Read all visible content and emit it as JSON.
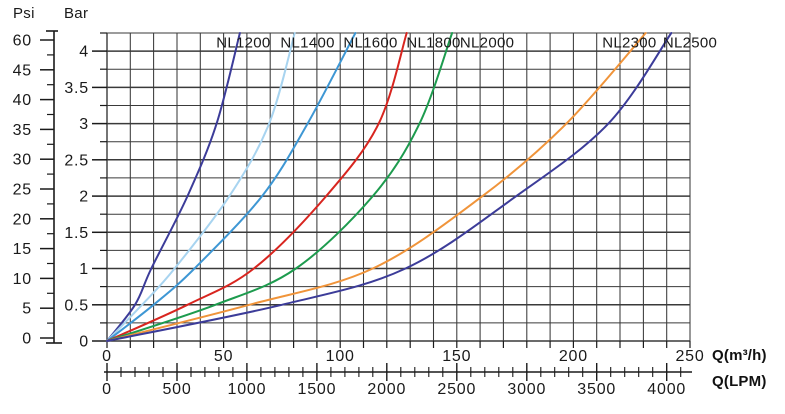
{
  "chart_data": {
    "type": "line",
    "description": "Pump pressure vs flow performance curves",
    "psi_axis": {
      "unit": "Psi",
      "tick_labels_top_to_bottom": [
        "60",
        "45",
        "40",
        "35",
        "30",
        "25",
        "20",
        "15",
        "10",
        "5",
        "0"
      ]
    },
    "bar_axis": {
      "unit": "Bar",
      "min": 0,
      "max": 4.25,
      "minor_step": 0.25,
      "ticks": [
        0,
        0.5,
        1,
        1.5,
        2,
        2.5,
        3,
        3.5,
        4
      ],
      "tick_labels": [
        "0",
        "0.5",
        "1",
        "1.5",
        "2",
        "2.5",
        "3",
        "3.5",
        "4"
      ]
    },
    "m3h_axis": {
      "unit": "Q(m³/h)",
      "min": 0,
      "max": 250,
      "minor_step": 10,
      "ticks": [
        0,
        50,
        100,
        150,
        200,
        250
      ],
      "tick_labels": [
        "0",
        "50",
        "100",
        "150",
        "200",
        "250"
      ]
    },
    "lpm_axis": {
      "unit": "Q(LPM)",
      "min": 0,
      "max": 4100,
      "minor_step": 100,
      "lpm_per_m3h": 16.6667,
      "ticks": [
        0,
        500,
        1000,
        1500,
        2000,
        2500,
        3000,
        3500,
        4000
      ],
      "tick_labels": [
        "0",
        "500",
        "1000",
        "1500",
        "2000",
        "2500",
        "3000",
        "3500",
        "4000"
      ]
    },
    "grid": {
      "on": true,
      "color": "#3a3a3a"
    },
    "legend_position": "top-inside",
    "series": [
      {
        "name": "NL1200",
        "color": "#3c3c99",
        "label_q": 58.5,
        "points": [
          [
            0,
            0
          ],
          [
            12,
            0.5
          ],
          [
            19,
            1
          ],
          [
            34.5,
            2
          ],
          [
            47,
            3
          ],
          [
            57,
            4.25
          ]
        ]
      },
      {
        "name": "NL1400",
        "color": "#a8d4f0",
        "label_q": 86,
        "points": [
          [
            0,
            0
          ],
          [
            15,
            0.5
          ],
          [
            29,
            1
          ],
          [
            52.5,
            2
          ],
          [
            69.5,
            3
          ],
          [
            80.5,
            4.25
          ]
        ]
      },
      {
        "name": "NL1600",
        "color": "#3e97d4",
        "label_q": 113,
        "points": [
          [
            0,
            0
          ],
          [
            20,
            0.5
          ],
          [
            37.5,
            1
          ],
          [
            66.5,
            2
          ],
          [
            86,
            3
          ],
          [
            106.5,
            4.25
          ]
        ]
      },
      {
        "name": "NL1800",
        "color": "#d8251f",
        "label_q": 140,
        "points": [
          [
            0,
            0
          ],
          [
            34.5,
            0.5
          ],
          [
            63,
            1
          ],
          [
            94,
            2
          ],
          [
            116.5,
            3
          ],
          [
            128.5,
            4.25
          ]
        ]
      },
      {
        "name": "NL2000",
        "color": "#1d9b4e",
        "label_q": 163,
        "points": [
          [
            0,
            0
          ],
          [
            46.5,
            0.5
          ],
          [
            81,
            1
          ],
          [
            114,
            2
          ],
          [
            134,
            3
          ],
          [
            148,
            4.25
          ]
        ]
      },
      {
        "name": "NL2300",
        "color": "#f0943a",
        "label_q": 224,
        "points": [
          [
            0,
            0
          ],
          [
            61,
            0.5
          ],
          [
            114,
            1
          ],
          [
            161,
            2
          ],
          [
            197,
            3
          ],
          [
            231,
            4.25
          ]
        ]
      },
      {
        "name": "NL2500",
        "color": "#3c3c99",
        "label_q": 250,
        "points": [
          [
            0,
            0
          ],
          [
            75,
            0.5
          ],
          [
            128,
            1
          ],
          [
            175.5,
            2
          ],
          [
            215,
            3
          ],
          [
            242,
            4.25
          ]
        ]
      }
    ]
  }
}
